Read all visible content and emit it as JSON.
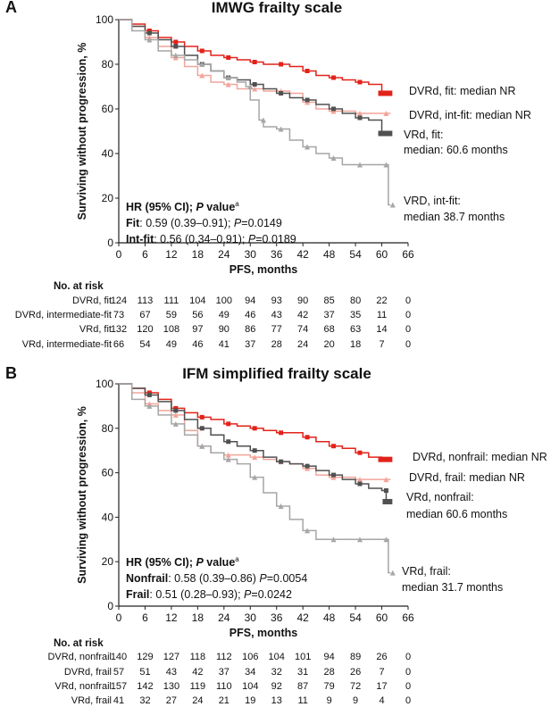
{
  "chart_data": [
    {
      "panel": "A",
      "type": "line",
      "title": "IMWG frailty scale",
      "xlabel": "PFS, months",
      "ylabel": "Surviving without progression, %",
      "xlim": [
        0,
        66
      ],
      "ylim": [
        0,
        100
      ],
      "x_ticks": [
        0,
        6,
        12,
        18,
        24,
        30,
        36,
        42,
        48,
        54,
        60,
        66
      ],
      "y_ticks": [
        0,
        20,
        40,
        60,
        80,
        100
      ],
      "grid": false,
      "series": [
        {
          "name": "DVRd, fit",
          "color": "#e2231a",
          "x": [
            0,
            3,
            6,
            9,
            12,
            15,
            18,
            21,
            24,
            27,
            30,
            33,
            36,
            39,
            42,
            45,
            48,
            51,
            54,
            57,
            60,
            62
          ],
          "y": [
            100,
            98,
            95,
            92,
            90,
            88,
            86,
            84,
            83,
            82,
            81,
            80,
            80,
            79,
            77,
            75,
            74,
            73,
            72,
            71,
            67,
            67
          ]
        },
        {
          "name": "DVRd, int-fit",
          "color": "#f2a49a",
          "x": [
            0,
            3,
            6,
            9,
            12,
            15,
            18,
            21,
            24,
            27,
            30,
            33,
            36,
            39,
            42,
            45,
            48,
            51,
            54,
            57,
            60,
            62
          ],
          "y": [
            100,
            97,
            92,
            88,
            83,
            79,
            75,
            72,
            71,
            69,
            69,
            68,
            68,
            67,
            63,
            60,
            59,
            59,
            58,
            58,
            58,
            58
          ]
        },
        {
          "name": "VRd, fit",
          "color": "#505050",
          "x": [
            0,
            3,
            6,
            9,
            12,
            15,
            18,
            21,
            24,
            27,
            30,
            33,
            36,
            39,
            42,
            45,
            48,
            51,
            54,
            57,
            60,
            62
          ],
          "y": [
            100,
            97,
            94,
            91,
            88,
            84,
            80,
            77,
            74,
            73,
            71,
            69,
            67,
            65,
            64,
            62,
            60,
            58,
            56,
            55,
            49,
            49
          ]
        },
        {
          "name": "VRd, int-fit",
          "color": "#a6a6a6",
          "x": [
            0,
            3,
            6,
            9,
            12,
            15,
            18,
            21,
            24,
            27,
            29,
            30,
            32,
            33,
            36,
            39,
            42,
            45,
            48,
            51,
            54,
            57,
            60,
            61,
            61.5,
            62
          ],
          "y": [
            100,
            95,
            91,
            86,
            84,
            82,
            80,
            77,
            74,
            72,
            70,
            64,
            55,
            52,
            51,
            46,
            43,
            40,
            38,
            35,
            35,
            35,
            35,
            35,
            17,
            17
          ]
        }
      ],
      "annotations": [
        "DVRd, fit: median NR",
        "DVRd, int-fit: median NR",
        "VRd, fit:",
        "median: 60.6 months",
        "VRD, int-fit:",
        "median 38.7 months"
      ],
      "hr_box": {
        "header_bold": "HR (95% CI); ",
        "header_italic": "P",
        "header_rest": " value",
        "header_sup": "a",
        "lines": [
          {
            "label": "Fit",
            "text": ": 0.59 (0.39–0.91); ",
            "p_italic": "P",
            "p_value": "=0.0149"
          },
          {
            "label": "Int-fit",
            "text": ": 0.56 (0.34–0.91); ",
            "p_italic": "P",
            "p_value": "=0.0189"
          }
        ]
      },
      "risk_table": {
        "header": "No. at risk",
        "rows": [
          {
            "label": "DVRd, fit",
            "values": [
              124,
              113,
              111,
              104,
              100,
              94,
              93,
              90,
              85,
              80,
              22,
              0
            ]
          },
          {
            "label": "DVRd, intermediate-fit",
            "values": [
              73,
              67,
              59,
              56,
              49,
              46,
              43,
              42,
              37,
              35,
              11,
              0
            ]
          },
          {
            "label": "VRd, fit",
            "values": [
              132,
              120,
              108,
              97,
              90,
              86,
              77,
              74,
              68,
              63,
              14,
              0
            ]
          },
          {
            "label": "VRd, intermediate-fit",
            "values": [
              66,
              54,
              49,
              46,
              41,
              37,
              28,
              24,
              20,
              18,
              7,
              0
            ]
          }
        ]
      }
    },
    {
      "panel": "B",
      "type": "line",
      "title": "IFM simplified frailty scale",
      "xlabel": "PFS, months",
      "ylabel": "Surviving without progression, %",
      "xlim": [
        0,
        66
      ],
      "ylim": [
        0,
        100
      ],
      "x_ticks": [
        0,
        6,
        12,
        18,
        24,
        30,
        36,
        42,
        48,
        54,
        60,
        66
      ],
      "y_ticks": [
        0,
        20,
        40,
        60,
        80,
        100
      ],
      "grid": false,
      "series": [
        {
          "name": "DVRd, nonfrail",
          "color": "#e2231a",
          "x": [
            0,
            3,
            6,
            9,
            12,
            15,
            18,
            21,
            24,
            27,
            30,
            33,
            36,
            39,
            42,
            45,
            48,
            51,
            54,
            57,
            60,
            62
          ],
          "y": [
            100,
            98,
            96,
            93,
            89,
            87,
            85,
            84,
            82,
            81,
            80,
            79,
            78,
            78,
            76,
            74,
            72,
            71,
            69,
            67,
            66,
            66
          ]
        },
        {
          "name": "DVRd, frail",
          "color": "#f2a49a",
          "x": [
            0,
            3,
            6,
            9,
            12,
            15,
            18,
            21,
            24,
            27,
            30,
            33,
            36,
            39,
            42,
            45,
            48,
            51,
            54,
            57,
            60,
            62
          ],
          "y": [
            100,
            96,
            91,
            88,
            86,
            79,
            72,
            69,
            68,
            68,
            67,
            66,
            65,
            64,
            62,
            59,
            58,
            58,
            57,
            57,
            57,
            57
          ]
        },
        {
          "name": "VRd, nonfrail",
          "color": "#505050",
          "x": [
            0,
            3,
            6,
            9,
            12,
            15,
            18,
            21,
            24,
            27,
            30,
            33,
            36,
            39,
            42,
            45,
            48,
            51,
            54,
            57,
            60,
            61,
            62
          ],
          "y": [
            100,
            98,
            95,
            92,
            88,
            84,
            80,
            77,
            74,
            72,
            70,
            67,
            65,
            64,
            63,
            61,
            59,
            57,
            55,
            53,
            52,
            47,
            47
          ]
        },
        {
          "name": "VRd, frail",
          "color": "#a6a6a6",
          "x": [
            0,
            3,
            6,
            9,
            12,
            15,
            18,
            21,
            24,
            27,
            30,
            33,
            36,
            39,
            42,
            45,
            48,
            51,
            54,
            57,
            60,
            61,
            61.5,
            62
          ],
          "y": [
            100,
            93,
            90,
            86,
            82,
            77,
            72,
            69,
            66,
            64,
            58,
            51,
            45,
            39,
            34,
            30,
            30,
            30,
            30,
            30,
            30,
            30,
            15,
            15
          ]
        }
      ],
      "annotations": [
        "DVRd, nonfrail: median NR",
        "DVRd, frail: median NR",
        "VRd, nonfrail:",
        "median 60.6 months",
        "VRd, frail:",
        "median 31.7 months"
      ],
      "hr_box": {
        "header_bold": "HR (95% CI); ",
        "header_italic": "P",
        "header_rest": " value",
        "header_sup": "a",
        "lines": [
          {
            "label": "Nonfrail",
            "text": ": 0.58 (0.39–0.86) ",
            "p_italic": "P",
            "p_value": "=0.0054"
          },
          {
            "label": "Frail",
            "text": ": 0.51 (0.28–0.93); ",
            "p_italic": "P",
            "p_value": "=0.0242"
          }
        ]
      },
      "risk_table": {
        "header": "No. at risk",
        "rows": [
          {
            "label": "DVRd, nonfrail",
            "values": [
              140,
              129,
              127,
              118,
              112,
              106,
              104,
              101,
              94,
              89,
              26,
              0
            ]
          },
          {
            "label": "DVRd, frail",
            "values": [
              57,
              51,
              43,
              42,
              37,
              34,
              32,
              31,
              28,
              26,
              7,
              0
            ]
          },
          {
            "label": "VRd, nonfrail",
            "values": [
              157,
              142,
              130,
              119,
              110,
              104,
              92,
              87,
              79,
              72,
              17,
              0
            ]
          },
          {
            "label": "VRd, frail",
            "values": [
              41,
              32,
              27,
              24,
              21,
              19,
              13,
              11,
              9,
              9,
              4,
              0
            ]
          }
        ]
      }
    }
  ]
}
